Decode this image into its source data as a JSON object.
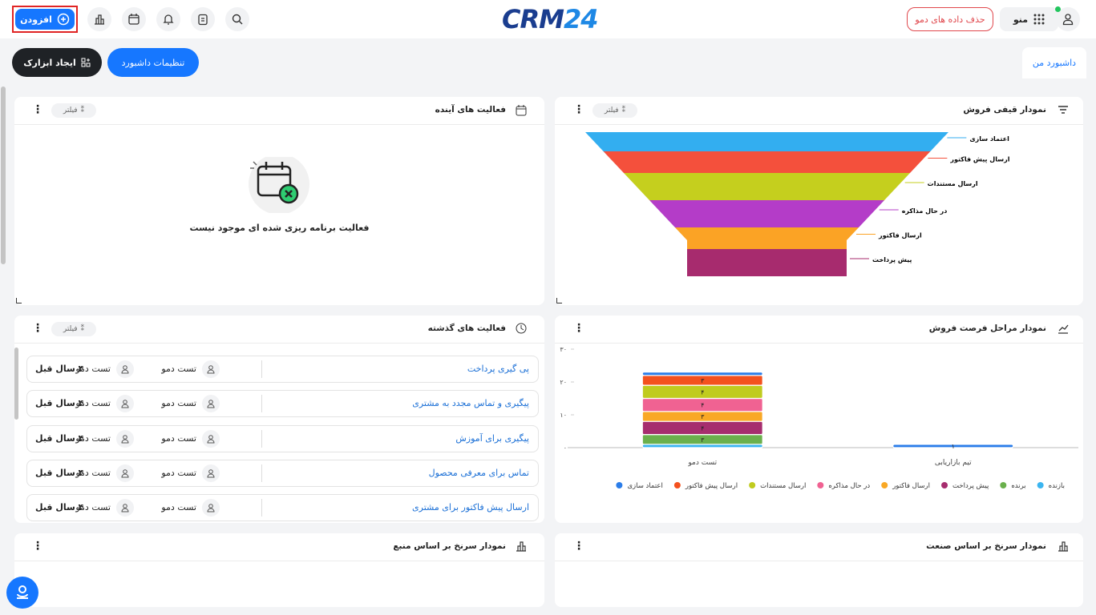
{
  "header": {
    "add_button": "افزودن",
    "logo_main": "CRM",
    "logo_number": "24",
    "menu": "منو",
    "delete_demo": "حذف داده های دمو"
  },
  "toolbar": {
    "create_widget": "ایجاد ابزارک",
    "dashboard_settings": "تنظیمات داشبورد",
    "tab": "داشبورد من"
  },
  "filter_label": "فیلتر",
  "upcoming_activities": {
    "title": "فعالیت های آینده",
    "empty_message": "فعالیت برنامه ریزی شده ای موجود نیست"
  },
  "past_activities": {
    "title": "فعالیت های گذشته",
    "rows": [
      {
        "title": "پی گیری پرداخت",
        "user1": "تست دمو",
        "user2": "تست دمو",
        "time": "۴ سال قبل"
      },
      {
        "title": "پیگیری و تماس مجدد به مشتری",
        "user1": "تست دمو",
        "user2": "تست دمو",
        "time": "۴ سال قبل"
      },
      {
        "title": "پیگیری برای آموزش",
        "user1": "تست دمو",
        "user2": "تست دمو",
        "time": "۴ سال قبل"
      },
      {
        "title": "تماس برای معرفی محصول",
        "user1": "تست دمو",
        "user2": "تست دمو",
        "time": "۴ سال قبل"
      },
      {
        "title": "ارسال پیش فاکتور برای مشتری",
        "user1": "تست دمو",
        "user2": "تست دمو",
        "time": "۴ سال قبل"
      }
    ]
  },
  "lead_by_source": {
    "title": "نمودار سرنخ بر اساس منبع"
  },
  "lead_by_industry": {
    "title": "نمودار سرنخ بر اساس صنعت"
  },
  "chart_data": [
    {
      "type": "funnel",
      "title": "نمودار قیفی فروش",
      "categories": [
        "اعتماد سازی",
        "ارسال پیش فاکتور",
        "ارسال مستندات",
        "در حال مذاکره",
        "ارسال فاکتور",
        "پیش پرداخت"
      ],
      "colors": [
        "#33aef0",
        "#f4503c",
        "#c5cf1e",
        "#b43cc8",
        "#fba325",
        "#a72b6e"
      ]
    },
    {
      "type": "bar",
      "stacked": true,
      "title": "نمودار مراحل فرصت فروش",
      "categories": [
        "تست دمو",
        "تیم بازاریابی"
      ],
      "ylim": [
        0,
        30
      ],
      "yticks": [
        {
          "value": 0,
          "label": "۰"
        },
        {
          "value": 10,
          "label": "۱۰"
        },
        {
          "value": 20,
          "label": "۲۰"
        },
        {
          "value": 30,
          "label": "۳۰"
        }
      ],
      "legend": "bottom",
      "series": [
        {
          "name": "بازنده",
          "color": "#3bb5f0",
          "values": [
            1,
            null
          ],
          "value_labels": [
            null,
            null
          ]
        },
        {
          "name": "برنده",
          "color": "#6ab04c",
          "values": [
            3,
            null
          ],
          "value_labels": [
            "۳",
            null
          ]
        },
        {
          "name": "پیش پرداخت",
          "color": "#a62d6e",
          "values": [
            4,
            null
          ],
          "value_labels": [
            "۴",
            null
          ]
        },
        {
          "name": "ارسال فاکتور",
          "color": "#f9a825",
          "values": [
            3,
            null
          ],
          "value_labels": [
            "۳",
            null
          ]
        },
        {
          "name": "در حال مذاکره",
          "color": "#f06292",
          "values": [
            4,
            null
          ],
          "value_labels": [
            "۴",
            null
          ]
        },
        {
          "name": "ارسال مستندات",
          "color": "#c0cb1f",
          "values": [
            4,
            null
          ],
          "value_labels": [
            "۴",
            null
          ]
        },
        {
          "name": "ارسال پیش فاکتور",
          "color": "#f4511e",
          "values": [
            3,
            null
          ],
          "value_labels": [
            "۳",
            null
          ]
        },
        {
          "name": "اعتماد سازی",
          "color": "#2b7de9",
          "values": [
            1,
            1
          ],
          "value_labels": [
            null,
            "۱"
          ]
        }
      ]
    }
  ]
}
